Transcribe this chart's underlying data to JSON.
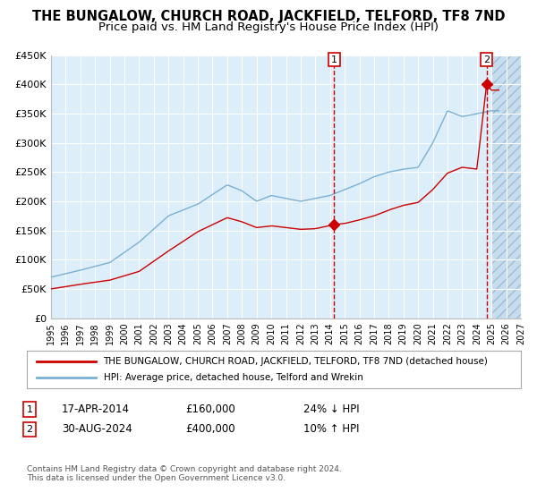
{
  "title": "THE BUNGALOW, CHURCH ROAD, JACKFIELD, TELFORD, TF8 7ND",
  "subtitle": "Price paid vs. HM Land Registry's House Price Index (HPI)",
  "title_fontsize": 10.5,
  "subtitle_fontsize": 9.5,
  "background_color": "#ffffff",
  "plot_bg_color": "#dceef9",
  "hatch_bg_color": "#c5ddef",
  "grid_color": "#ffffff",
  "red_line_color": "#cc0000",
  "blue_line_color": "#7ab0d4",
  "sale1_date_num": 2014.29,
  "sale1_price": 160000,
  "sale1_label": "1",
  "sale1_date_str": "17-APR-2014",
  "sale1_price_str": "£160,000",
  "sale1_hpi_str": "24% ↓ HPI",
  "sale2_date_num": 2024.66,
  "sale2_price": 400000,
  "sale2_label": "2",
  "sale2_date_str": "30-AUG-2024",
  "sale2_price_str": "£400,000",
  "sale2_hpi_str": "10% ↑ HPI",
  "xmin": 1995,
  "xmax": 2027,
  "ymin": 0,
  "ymax": 450000,
  "yticks": [
    0,
    50000,
    100000,
    150000,
    200000,
    250000,
    300000,
    350000,
    400000,
    450000
  ],
  "ytick_labels": [
    "£0",
    "£50K",
    "£100K",
    "£150K",
    "£200K",
    "£250K",
    "£300K",
    "£350K",
    "£400K",
    "£450K"
  ],
  "legend_red_label": "THE BUNGALOW, CHURCH ROAD, JACKFIELD, TELFORD, TF8 7ND (detached house)",
  "legend_blue_label": "HPI: Average price, detached house, Telford and Wrekin",
  "footnote": "Contains HM Land Registry data © Crown copyright and database right 2024.\nThis data is licensed under the Open Government Licence v3.0.",
  "hatch_start": 2025.0
}
